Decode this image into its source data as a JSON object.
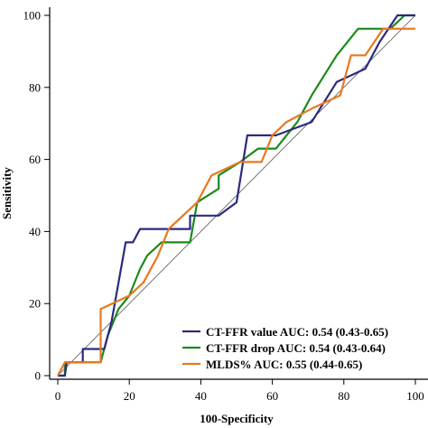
{
  "chart_data": {
    "type": "line",
    "xlabel": "100-Specificity",
    "ylabel": "Sensitivity",
    "xlim": [
      0,
      100
    ],
    "ylim": [
      0,
      100
    ],
    "x_ticks": [
      0,
      20,
      40,
      60,
      80,
      100
    ],
    "y_ticks": [
      0,
      20,
      40,
      60,
      80,
      100
    ],
    "reference_line": [
      [
        0,
        0
      ],
      [
        100,
        100
      ]
    ],
    "legend_position": "bottom-right",
    "series": [
      {
        "name": "CT-FFR value AUC: 0.54 (0.43-0.65)",
        "color": "#2a2a80",
        "points": [
          [
            0,
            0
          ],
          [
            2,
            0
          ],
          [
            2.5,
            3.7
          ],
          [
            7,
            3.7
          ],
          [
            7,
            7.4
          ],
          [
            13,
            7.4
          ],
          [
            14,
            11.1
          ],
          [
            15,
            14.8
          ],
          [
            17,
            25.9
          ],
          [
            19,
            37
          ],
          [
            21,
            37
          ],
          [
            23,
            40.7
          ],
          [
            37,
            40.7
          ],
          [
            37,
            44.4
          ],
          [
            45,
            44.4
          ],
          [
            50,
            48.1
          ],
          [
            53,
            66.7
          ],
          [
            61,
            66.7
          ],
          [
            71,
            70.4
          ],
          [
            78,
            81.5
          ],
          [
            86,
            85.2
          ],
          [
            90,
            92.6
          ],
          [
            95,
            100
          ],
          [
            100,
            100
          ]
        ]
      },
      {
        "name": "CT-FFR drop AUC: 0.54 (0.43-0.64)",
        "color": "#1a8a1a",
        "points": [
          [
            0,
            0
          ],
          [
            2,
            0
          ],
          [
            2,
            3.7
          ],
          [
            7,
            3.7
          ],
          [
            12,
            3.7
          ],
          [
            14,
            11.1
          ],
          [
            17,
            18.5
          ],
          [
            20,
            22.2
          ],
          [
            23,
            29.6
          ],
          [
            25,
            33.3
          ],
          [
            29,
            37
          ],
          [
            37,
            37
          ],
          [
            39,
            48.1
          ],
          [
            45,
            51.9
          ],
          [
            45,
            55.6
          ],
          [
            51,
            59.3
          ],
          [
            56,
            63
          ],
          [
            61,
            63
          ],
          [
            67,
            70.4
          ],
          [
            71,
            77.8
          ],
          [
            78,
            88.9
          ],
          [
            84,
            96.3
          ],
          [
            93,
            96.3
          ],
          [
            97,
            100
          ],
          [
            100,
            100
          ]
        ]
      },
      {
        "name": "MLDS% AUC: 0.55 (0.44-0.65)",
        "color": "#e8781e",
        "points": [
          [
            0,
            0
          ],
          [
            2,
            3.7
          ],
          [
            7,
            3.7
          ],
          [
            12,
            3.7
          ],
          [
            12,
            18.5
          ],
          [
            20,
            22.2
          ],
          [
            24,
            25.9
          ],
          [
            28,
            33.3
          ],
          [
            31,
            40.7
          ],
          [
            39,
            48.1
          ],
          [
            43,
            55.6
          ],
          [
            51,
            59.3
          ],
          [
            57,
            59.3
          ],
          [
            60,
            66.7
          ],
          [
            64,
            70.4
          ],
          [
            71,
            74.1
          ],
          [
            79,
            77.8
          ],
          [
            82,
            88.9
          ],
          [
            86,
            88.9
          ],
          [
            91,
            96.3
          ],
          [
            93,
            96.3
          ],
          [
            100,
            96.3
          ]
        ]
      }
    ]
  }
}
